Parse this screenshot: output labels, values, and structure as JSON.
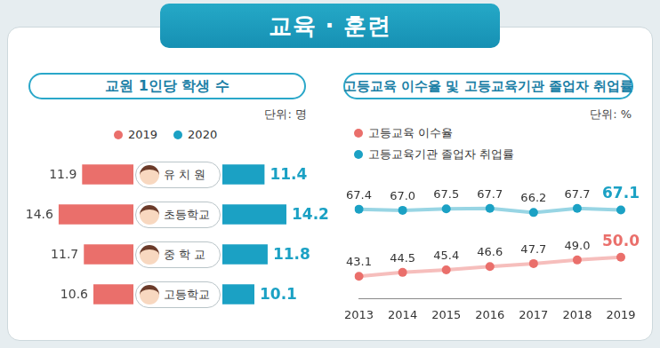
{
  "header": {
    "title": "교육 · 훈련"
  },
  "chart_data": [
    {
      "type": "bar",
      "orientation": "horizontal",
      "title": "교원 1인당 학생 수",
      "subtitle": "단위: 명",
      "categories": [
        "유 치 원",
        "초등학교",
        "중 학 교",
        "고등학교"
      ],
      "series": [
        {
          "name": "2019",
          "color": "#ea6f6b",
          "values": [
            11.9,
            14.6,
            11.7,
            10.6
          ]
        },
        {
          "name": "2020",
          "color": "#1ba1c4",
          "values": [
            11.4,
            14.2,
            11.8,
            10.1
          ]
        }
      ],
      "xlim": [
        6,
        15
      ],
      "data_labels": true,
      "grid": false,
      "legend": "top",
      "tick_labels": "y"
    },
    {
      "type": "line",
      "title": "고등교육 이수율 및 고등교육기관 졸업자 취업률",
      "subtitle": "단위: %",
      "categories": [
        "2013",
        "2014",
        "2015",
        "2016",
        "2017",
        "2018",
        "2019"
      ],
      "series": [
        {
          "name": "고등교육 이수율",
          "color": "#ea6f6b",
          "values": [
            43.1,
            44.5,
            45.4,
            46.6,
            47.7,
            49.0,
            50.0
          ],
          "value_labels": [
            "43.1",
            "44.5",
            "45.4",
            "46.6",
            "47.7",
            "49.0",
            "50.0"
          ]
        },
        {
          "name": "고등교육기관 졸업자 취업률",
          "color": "#1ba1c4",
          "values": [
            67.4,
            67.0,
            67.5,
            67.7,
            66.2,
            67.7,
            67.1
          ],
          "value_labels": [
            "67.4",
            "67.0",
            "67.5",
            "67.7",
            "66.2",
            "67.7",
            "67.1"
          ]
        }
      ],
      "ylim": [
        35,
        75
      ],
      "data_labels": true,
      "grid": false,
      "legend": "top-left",
      "tick_labels": "x",
      "marker": "circle"
    }
  ]
}
